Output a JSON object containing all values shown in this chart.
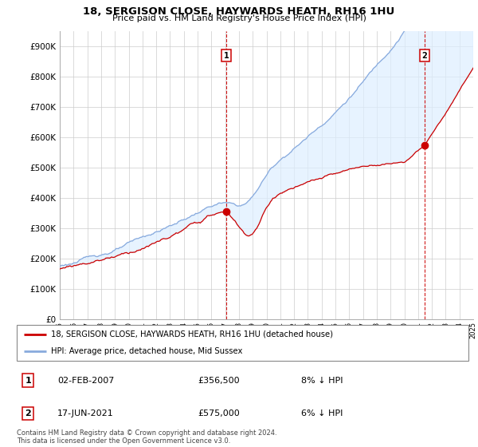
{
  "title": "18, SERGISON CLOSE, HAYWARDS HEATH, RH16 1HU",
  "subtitle": "Price paid vs. HM Land Registry's House Price Index (HPI)",
  "ylim": [
    0,
    950000
  ],
  "yticks": [
    0,
    100000,
    200000,
    300000,
    400000,
    500000,
    600000,
    700000,
    800000,
    900000
  ],
  "ytick_labels": [
    "£0",
    "£100K",
    "£200K",
    "£300K",
    "£400K",
    "£500K",
    "£600K",
    "£700K",
    "£800K",
    "£900K"
  ],
  "year1": 2007.09,
  "price1": 356500,
  "year2": 2021.46,
  "price2": 575000,
  "legend_label_red": "18, SERGISON CLOSE, HAYWARDS HEATH, RH16 1HU (detached house)",
  "legend_label_blue": "HPI: Average price, detached house, Mid Sussex",
  "footer": "Contains HM Land Registry data © Crown copyright and database right 2024.\nThis data is licensed under the Open Government Licence v3.0.",
  "red_color": "#cc0000",
  "blue_color": "#88aadd",
  "fill_color": "#ddeeff",
  "vline_color": "#cc0000",
  "background_color": "#ffffff",
  "grid_color": "#cccccc",
  "table_date1": "02-FEB-2007",
  "table_price1": "£356,500",
  "table_hpi1": "8% ↓ HPI",
  "table_date2": "17-JUN-2021",
  "table_price2": "£575,000",
  "table_hpi2": "6% ↓ HPI"
}
